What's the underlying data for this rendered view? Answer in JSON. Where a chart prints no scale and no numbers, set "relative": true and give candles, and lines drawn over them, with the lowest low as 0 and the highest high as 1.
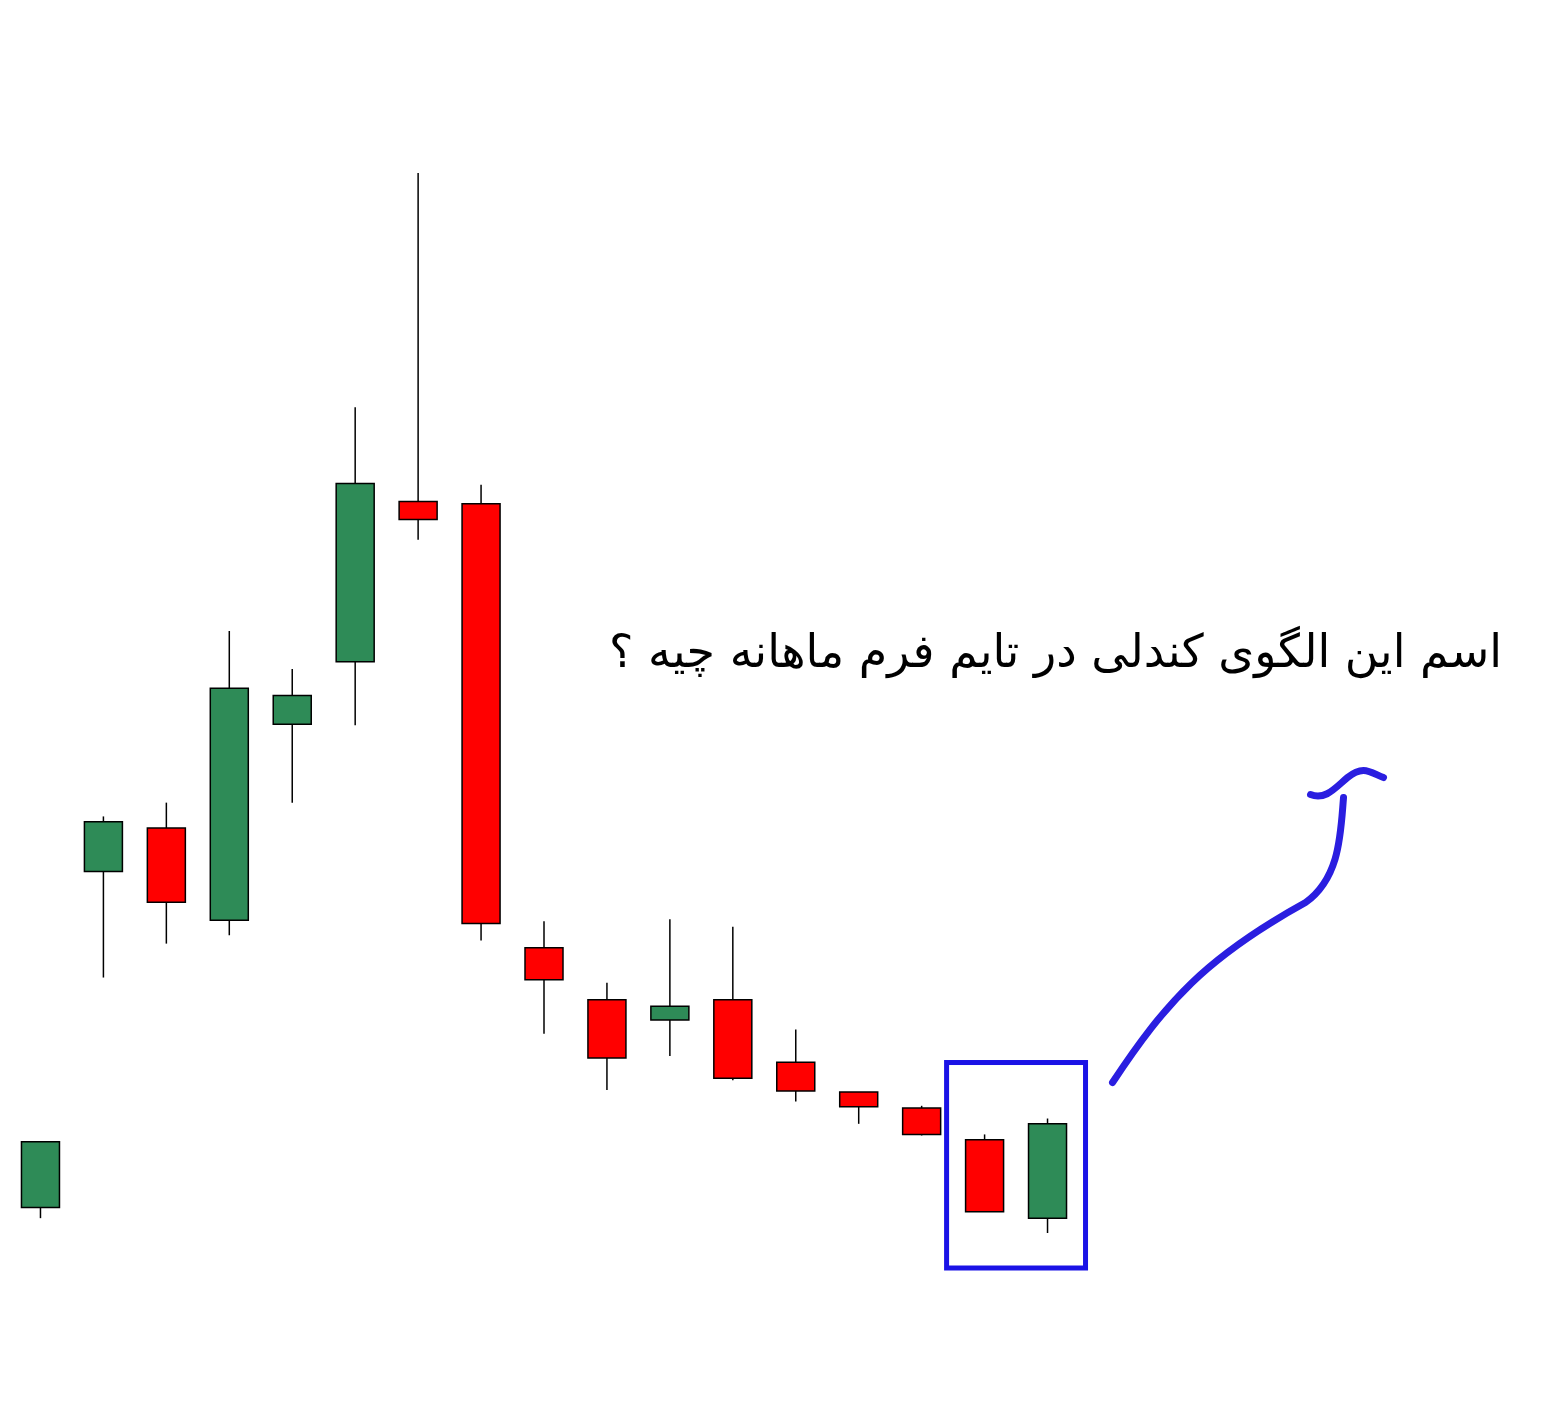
{
  "chart_data": {
    "type": "candlestick",
    "relative": true,
    "categories": [
      null,
      null,
      null,
      null,
      null,
      null,
      null,
      null,
      null,
      null,
      null,
      null,
      null,
      null,
      null,
      null,
      null
    ],
    "ohlc": [
      [
        0.024,
        0.086,
        0.014,
        0.086
      ],
      [
        0.341,
        0.393,
        0.241,
        0.388
      ],
      [
        0.382,
        0.406,
        0.273,
        0.312
      ],
      [
        0.295,
        0.568,
        0.281,
        0.514
      ],
      [
        0.48,
        0.532,
        0.406,
        0.507
      ],
      [
        0.539,
        0.779,
        0.479,
        0.707
      ],
      [
        0.69,
        1,
        0.654,
        0.673
      ],
      [
        0.688,
        0.706,
        0.276,
        0.292
      ],
      [
        0.269,
        0.294,
        0.188,
        0.239
      ],
      [
        0.22,
        0.236,
        0.135,
        0.165
      ],
      [
        0.201,
        0.296,
        0.167,
        0.214
      ],
      [
        0.22,
        0.289,
        0.144,
        0.146
      ],
      [
        0.161,
        0.192,
        0.124,
        0.134
      ],
      [
        0.133,
        0.133,
        0.103,
        0.119
      ],
      [
        0.118,
        0.12,
        0.092,
        0.093
      ],
      [
        0.088,
        0.093,
        0.02,
        0.02
      ],
      [
        0.014,
        0.108,
        0,
        0.103
      ]
    ],
    "colors": [
      "#2e8b57",
      "#2e8b57",
      "#ff0000",
      "#2e8b57",
      "#2e8b57",
      "#2e8b57",
      "#ff0000",
      "#ff0000",
      "#ff0000",
      "#ff0000",
      "#2e8b57",
      "#ff0000",
      "#ff0000",
      "#ff0000",
      "#ff0000",
      "#ff0000",
      "#2e8b57"
    ],
    "annotations": [
      "اسم این الگوی کندلی در تایم فرم ماهانه چیه ؟"
    ]
  }
}
